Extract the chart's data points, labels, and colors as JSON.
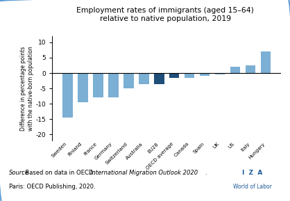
{
  "title_line1": "Employment rates of immigrants (aged 15–64)",
  "title_line2": "relative to native population, 2019",
  "ylabel": "Difference in percentage points\nwith the native-born population",
  "categories": [
    "Sweden",
    "Finland",
    "France",
    "Germany",
    "Switzerland",
    "Australia",
    "EU28",
    "OECD average",
    "Canada",
    "Spain",
    "UK",
    "US",
    "Italy",
    "Hungary"
  ],
  "values": [
    -14.5,
    -9.5,
    -8.0,
    -8.0,
    -5.0,
    -3.5,
    -3.5,
    -1.5,
    -1.5,
    -1.0,
    -0.5,
    2.0,
    2.5,
    7.0
  ],
  "bar_colors": [
    "#7bafd4",
    "#7bafd4",
    "#7bafd4",
    "#7bafd4",
    "#7bafd4",
    "#7bafd4",
    "#1f4e79",
    "#1f4e79",
    "#7bafd4",
    "#7bafd4",
    "#7bafd4",
    "#7bafd4",
    "#7bafd4",
    "#7bafd4"
  ],
  "ylim": [
    -22,
    12
  ],
  "yticks": [
    -20,
    -15,
    -10,
    -5,
    0,
    5,
    10
  ],
  "source_normal": "Source",
  "source_part1": ": Based on data in OECD. ",
  "source_italic": "International Migration Outlook 2020",
  "source_part2": ".",
  "source_line2": "Paris: OECD Publishing, 2020.",
  "border_color": "#5b9bd5",
  "bg_color": "#ffffff",
  "iza_line1": "I  Z  A",
  "iza_line2": "World of Labor",
  "iza_color": "#1f5c99"
}
